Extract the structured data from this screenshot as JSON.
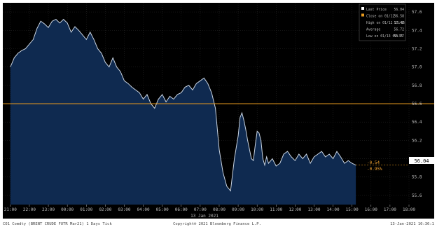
{
  "colors": {
    "background": "#000000",
    "area_fill": "#0f2a50",
    "line": "#c9d4e2",
    "close_line": "#e89a1e",
    "grid": "#2b2b2b",
    "text": "#bfbfbf",
    "change_text": "#f0a030"
  },
  "chart_data": {
    "type": "area",
    "x_tick_labels": [
      "21:00",
      "22:00",
      "23:00",
      "00:00",
      "01:00",
      "02:00",
      "03:00",
      "04:00",
      "05:00",
      "06:00",
      "07:00",
      "08:00",
      "09:00",
      "10:00",
      "11:00",
      "12:00",
      "13:00",
      "14:00",
      "15:00",
      "16:00",
      "17:00",
      "18:00"
    ],
    "y_tick_labels": [
      "57.6",
      "57.4",
      "57.2",
      "57.0",
      "56.8",
      "56.6",
      "56.4",
      "56.2",
      "56.0",
      "55.8",
      "55.6"
    ],
    "ylim": [
      55.5,
      57.7
    ],
    "date_label": "13 Jan 2021",
    "x_hours": [
      21,
      21.1,
      21.2,
      21.4,
      21.6,
      21.8,
      22,
      22.2,
      22.4,
      22.6,
      22.8,
      23,
      23.2,
      23.4,
      23.6,
      23.8,
      24,
      24.2,
      24.4,
      24.6,
      24.8,
      25,
      25.2,
      25.4,
      25.6,
      25.8,
      26,
      26.2,
      26.4,
      26.6,
      26.8,
      27,
      27.2,
      27.4,
      27.6,
      27.8,
      28,
      28.2,
      28.4,
      28.6,
      28.8,
      29,
      29.2,
      29.4,
      29.6,
      29.8,
      30,
      30.2,
      30.4,
      30.6,
      30.8,
      31,
      31.2,
      31.4,
      31.6,
      31.8,
      32,
      32.2,
      32.4,
      32.6,
      32.8,
      33,
      33.1,
      33.2,
      33.3,
      33.4,
      33.5,
      33.6,
      33.7,
      33.8,
      33.9,
      34,
      34.1,
      34.2,
      34.3,
      34.4,
      34.5,
      34.6,
      34.8,
      35,
      35.2,
      35.4,
      35.6,
      35.8,
      36,
      36.2,
      36.4,
      36.6,
      36.8,
      37,
      37.2,
      37.4,
      37.6,
      37.8,
      38,
      38.2,
      38.4,
      38.6,
      38.8,
      39,
      39.2
    ],
    "price": [
      57.0,
      57.05,
      57.1,
      57.15,
      57.18,
      57.2,
      57.25,
      57.3,
      57.42,
      57.5,
      57.47,
      57.43,
      57.5,
      57.52,
      57.48,
      57.52,
      57.48,
      57.38,
      57.44,
      57.4,
      57.35,
      57.3,
      57.38,
      57.3,
      57.2,
      57.15,
      57.05,
      57.0,
      57.1,
      57.0,
      56.95,
      56.85,
      56.82,
      56.78,
      56.75,
      56.72,
      56.65,
      56.7,
      56.6,
      56.55,
      56.65,
      56.7,
      56.62,
      56.68,
      56.65,
      56.7,
      56.72,
      56.78,
      56.8,
      56.75,
      56.82,
      56.85,
      56.88,
      56.82,
      56.72,
      56.55,
      56.1,
      55.85,
      55.7,
      55.65,
      56.0,
      56.25,
      56.45,
      56.5,
      56.42,
      56.32,
      56.2,
      56.1,
      56.0,
      55.98,
      56.15,
      56.3,
      56.28,
      56.2,
      56.0,
      55.93,
      56.02,
      55.95,
      56.0,
      55.92,
      55.95,
      56.05,
      56.08,
      56.02,
      55.98,
      56.05,
      56.0,
      56.05,
      55.95,
      56.02,
      56.05,
      56.08,
      56.02,
      56.05,
      56.0,
      56.08,
      56.02,
      55.95,
      55.98,
      55.95,
      55.93
    ],
    "close_level": 56.6,
    "last_value_label": "56.04",
    "change_labels": [
      "-0.54",
      "-0.95%"
    ],
    "legend": [
      {
        "label": "Last Price",
        "value": "56.04"
      },
      {
        "label": "Close on 01/12",
        "value": "56.58"
      },
      {
        "label": "High on 01/12 23:06",
        "value": "57.42"
      },
      {
        "label": "Average",
        "value": "56.72"
      },
      {
        "label": "Low on 01/13 09:36",
        "value": "55.77"
      }
    ]
  },
  "footer": {
    "left": "CO1 Comdty (BRENT CRUDE FUTR  Mar21) 1 Days  Tick",
    "center": "Copyright® 2021 Bloomberg Finance L.P.",
    "right": "13-Jan-2021 10:36:1"
  }
}
